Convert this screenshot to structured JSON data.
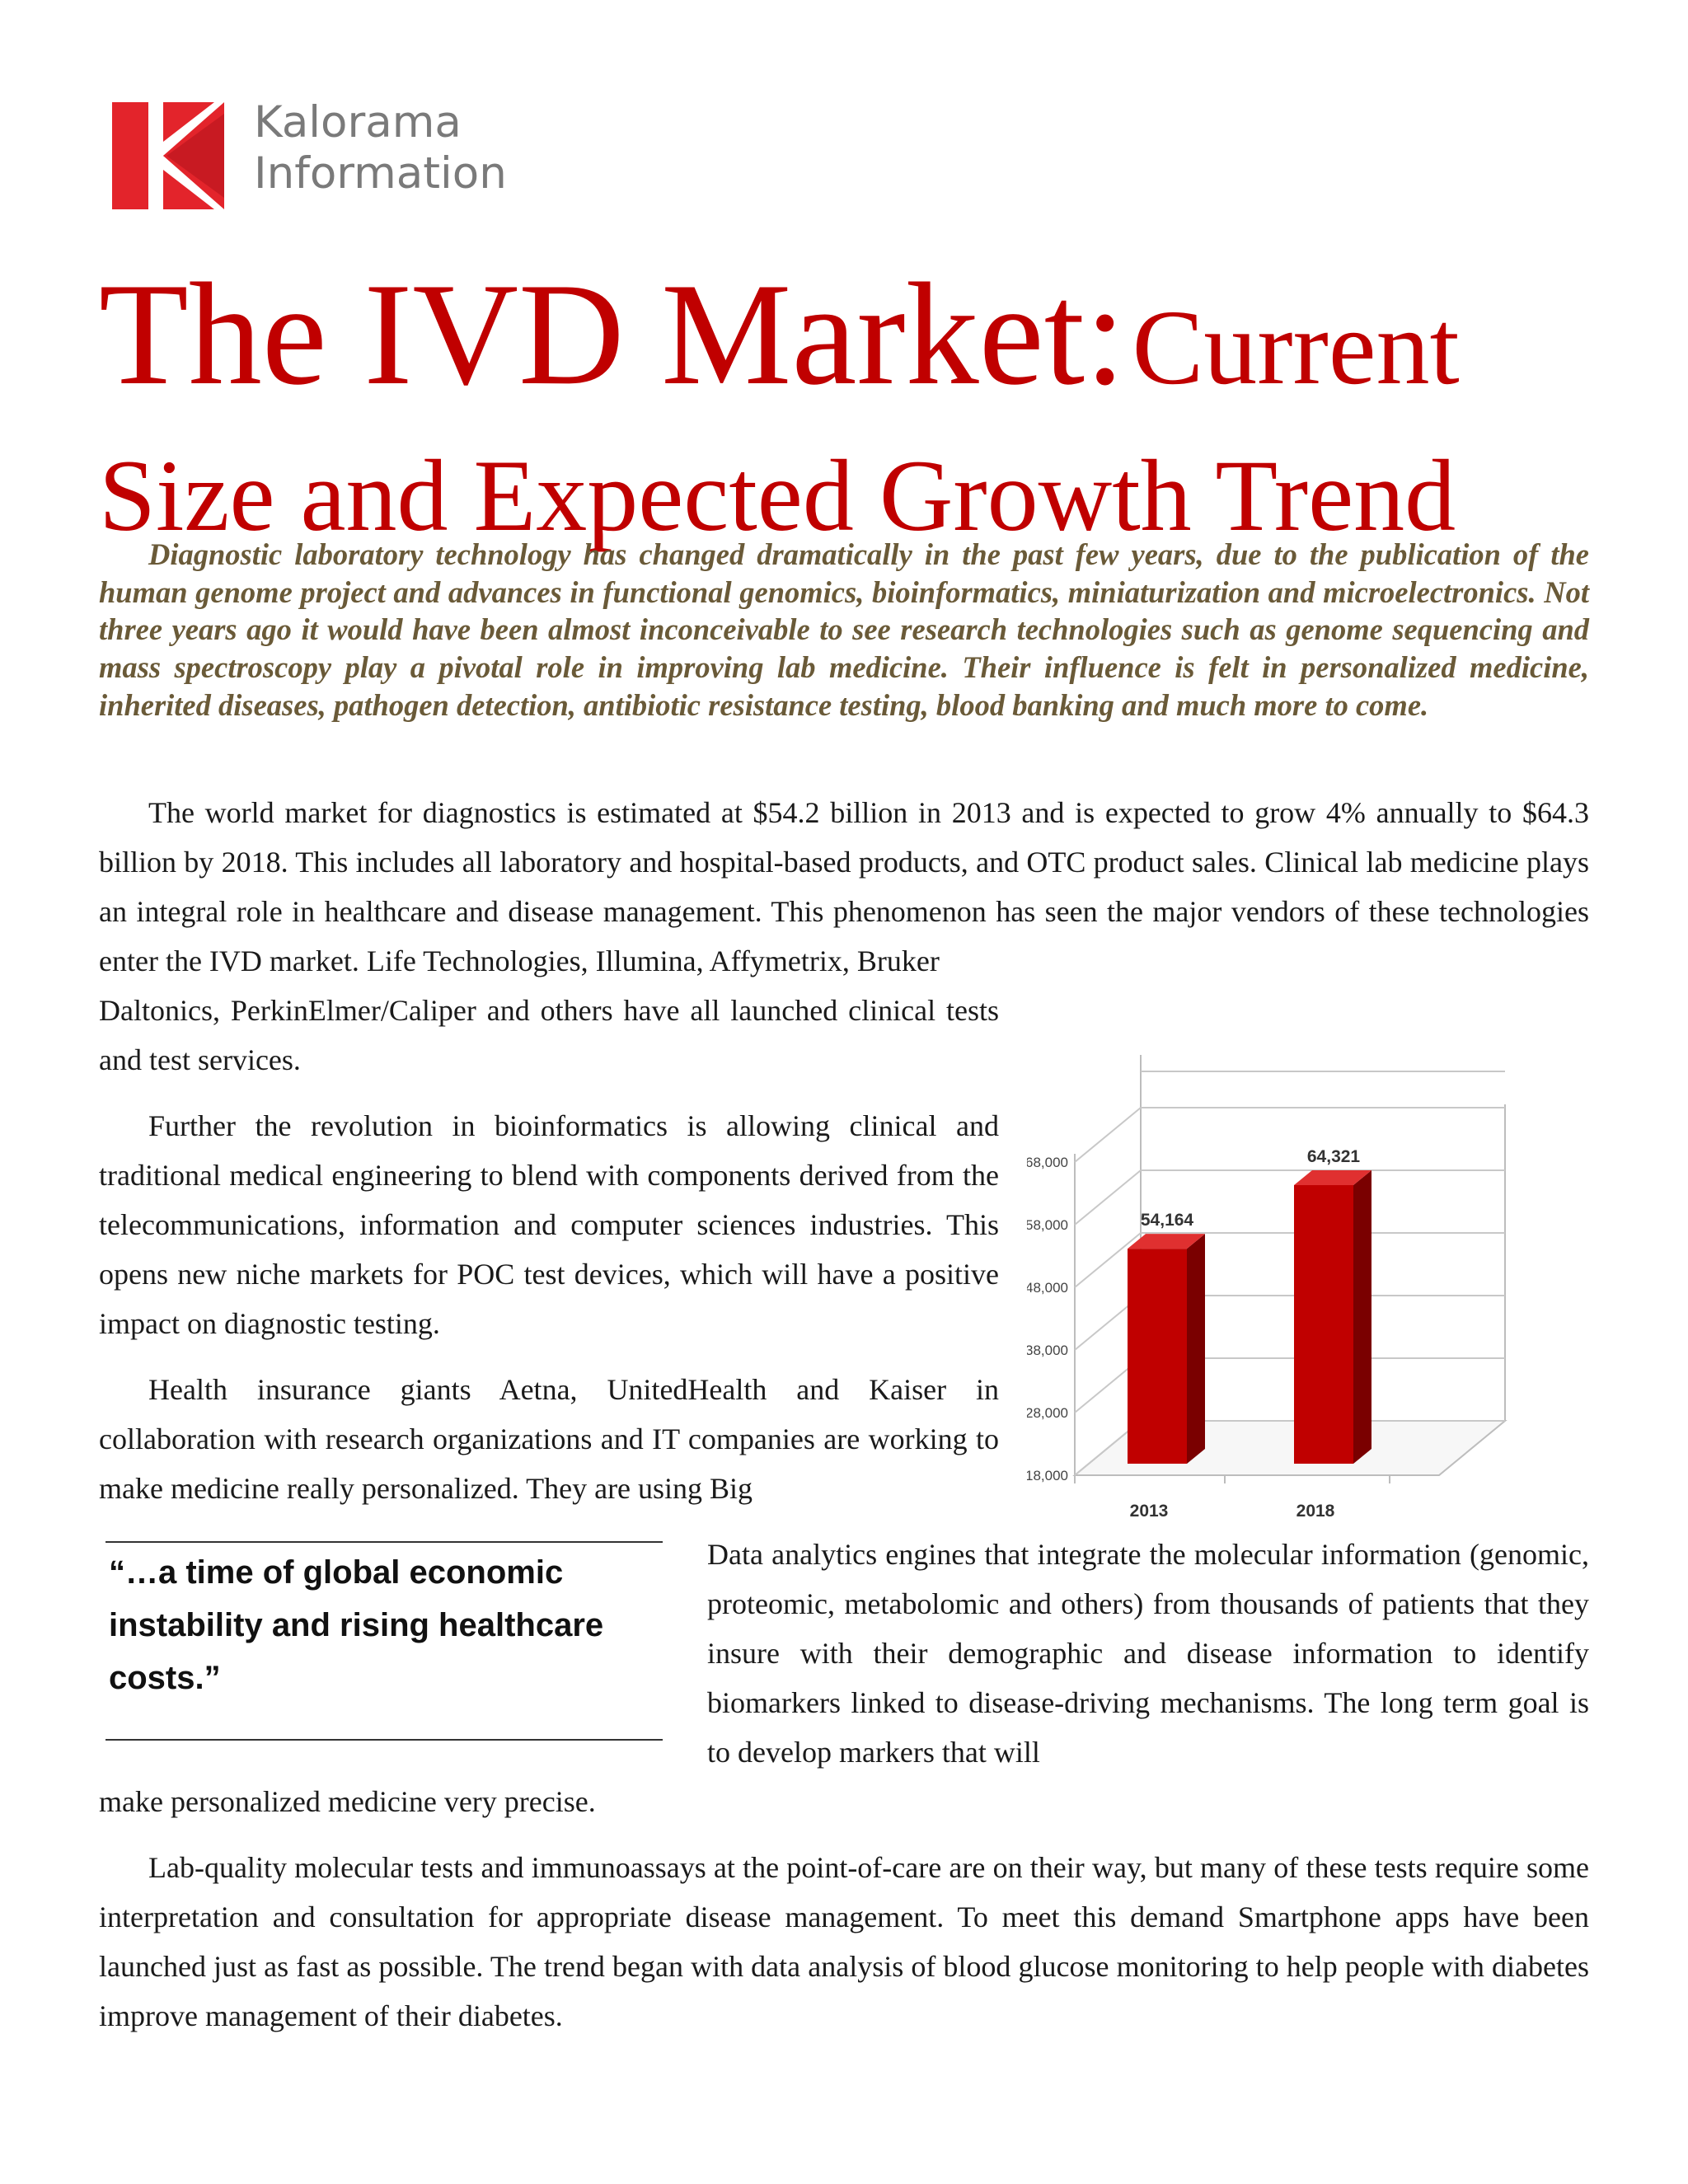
{
  "logo": {
    "line1": "Kalorama",
    "line2": "Information",
    "brand_color": "#e3242b"
  },
  "title": {
    "part1": "The IVD Market:",
    "part2": "Current",
    "line2": "Size and Expected Growth Trend"
  },
  "intro": "Diagnostic laboratory technology has changed dramatically in the past few years, due to the publication of the human genome project and advances in functional genomics, bioinformatics, miniaturization and microelectronics.  Not three years ago it would have been almost inconceivable to see research technologies such as genome sequencing and mass spectroscopy play a pivotal role in improving lab medicine.  Their influence is felt in personalized medicine, inherited diseases, pathogen detection, antibiotic resistance testing, blood banking and much more to come.",
  "para1a": "The world market for diagnostics is estimated at $54.2 billion in 2013 and is expected to grow 4% annually to $64.3 billion by 2018.  This includes all laboratory and hospital-based products, and OTC product sales. Clinical lab medicine plays an integral role in healthcare and disease management.  This phenomenon has seen the major vendors of these technologies enter the IVD market.  Life Technologies, Illumina, Affymetrix, Bruker",
  "para1b": "Daltonics, PerkinElmer/Caliper and others have all launched clinical tests and test services.",
  "para2": "Further the revolution in bioinformatics is allowing clinical and traditional medical engineering to blend with components derived from the telecommunications, information and computer sciences industries.  This opens new niche markets for POC test devices, which will have a positive impact on diagnostic testing.",
  "para3a": "Health insurance giants Aetna, UnitedHealth and Kaiser in collaboration with research organizations and IT companies are working to make medicine really personalized.  They are using Big",
  "para3b": "Data analytics engines that integrate the molecular information (genomic, proteomic, metabolomic and others) from thousands of patients that they insure with their demographic and disease information to identify biomarkers linked to disease-driving mechanisms.  The long term goal is to develop markers that will",
  "para3c": "make personalized medicine very precise.",
  "quote": "“…a time of global economic instability and rising healthcare costs.”",
  "para4": "Lab-quality molecular tests and immunoassays at the point-of-care are on their way, but many of these tests require some interpretation and consultation for appropriate disease management.  To meet this demand Smartphone apps have been launched just as fast as possible.  The trend began with data analysis of blood glucose monitoring to help people with diabetes improve management of their diabetes.",
  "chart_data": {
    "type": "bar",
    "categories": [
      "2013",
      "2018"
    ],
    "values": [
      54164,
      64321
    ],
    "value_labels": [
      "54,164",
      "64,321"
    ],
    "ylim": [
      18000,
      68000
    ],
    "yticks": [
      18000,
      28000,
      38000,
      48000,
      58000,
      68000
    ],
    "ytick_labels": [
      "18,000",
      "28,000",
      "38,000",
      "48,000",
      "58,000",
      "68,000"
    ],
    "title": "",
    "xlabel": "",
    "ylabel": "",
    "grid": true,
    "style": "3d",
    "bar_color": "#c00000"
  }
}
